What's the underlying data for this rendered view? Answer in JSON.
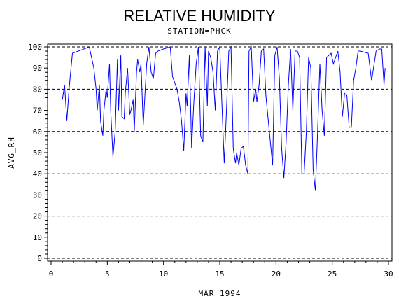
{
  "chart_data": {
    "type": "line",
    "title": "RELATIVE HUMIDITY",
    "subtitle": "STATION=PHCK",
    "xlabel": "MAR 1994",
    "ylabel": "AVG_RH",
    "xlim": [
      0,
      30
    ],
    "ylim": [
      0,
      100
    ],
    "x_ticks": [
      0,
      5,
      10,
      15,
      20,
      25,
      30
    ],
    "y_ticks": [
      0,
      10,
      20,
      30,
      40,
      50,
      60,
      70,
      80,
      90,
      100
    ],
    "reference_lines": [
      0,
      20,
      40,
      60,
      80,
      100
    ],
    "grid": "dashed horizontal reference lines",
    "line_color": "#0000ff",
    "series": [
      {
        "x": [
          1.0,
          1.2,
          1.4,
          1.6,
          1.9,
          3.4,
          3.8,
          4.0,
          4.1,
          4.3,
          4.4,
          4.6,
          4.7,
          4.9,
          5.0,
          5.2,
          5.3,
          5.5,
          5.7,
          5.9,
          6.0,
          6.2,
          6.3,
          6.5,
          6.6,
          6.8,
          7.0,
          7.1,
          7.3,
          7.4,
          7.6,
          7.7,
          7.9,
          8.0,
          8.2,
          8.5,
          8.7,
          8.9,
          9.1,
          9.3,
          9.5,
          10.0,
          10.6,
          10.8,
          11.2,
          11.4,
          11.6,
          11.8,
          12.0,
          12.1,
          12.3,
          12.5,
          12.7,
          12.9,
          13.1,
          13.3,
          13.5,
          13.7,
          13.9,
          14.0,
          14.2,
          14.4,
          14.6,
          14.8,
          15.0,
          15.2,
          15.4,
          15.6,
          15.8,
          16.0,
          16.2,
          16.4,
          16.5,
          16.7,
          16.9,
          17.1,
          17.3,
          17.5,
          17.6,
          17.8,
          18.0,
          18.2,
          18.3,
          18.5,
          18.7,
          18.9,
          19.1,
          19.3,
          19.5,
          19.7,
          19.9,
          20.1,
          20.3,
          20.5,
          20.7,
          20.9,
          21.1,
          21.3,
          21.5,
          21.7,
          21.9,
          22.1,
          22.3,
          22.5,
          22.7,
          22.9,
          23.1,
          23.3,
          23.5,
          23.7,
          23.9,
          24.1,
          24.3,
          24.5,
          24.7,
          24.9,
          25.1,
          25.3,
          25.5,
          25.7,
          25.9,
          26.1,
          26.3,
          26.5,
          26.7,
          26.9,
          27.1,
          27.3,
          27.5,
          28.2,
          28.5,
          28.9,
          29.2,
          29.4,
          29.6,
          29.7
        ],
        "y": [
          75,
          82,
          65,
          80,
          97,
          100,
          90,
          80,
          70,
          82,
          65,
          58,
          70,
          80,
          76,
          92,
          70,
          48,
          60,
          94,
          70,
          96,
          67,
          66,
          78,
          90,
          68,
          70,
          75,
          60,
          88,
          94,
          88,
          92,
          63,
          92,
          100,
          88,
          85,
          97,
          98,
          99,
          100,
          86,
          80,
          74,
          65,
          51,
          78,
          72,
          96,
          52,
          74,
          92,
          100,
          58,
          55,
          100,
          72,
          98,
          95,
          88,
          70,
          98,
          100,
          72,
          45,
          70,
          98,
          100,
          52,
          45,
          50,
          44,
          52,
          53,
          44,
          40,
          98,
          100,
          74,
          80,
          74,
          82,
          98,
          99,
          77,
          66,
          55,
          44,
          96,
          100,
          85,
          52,
          38,
          55,
          82,
          99,
          70,
          98,
          98,
          95,
          40,
          40,
          60,
          95,
          90,
          42,
          32,
          60,
          92,
          70,
          58,
          95,
          96,
          97,
          92,
          95,
          98,
          88,
          67,
          78,
          77,
          62,
          62,
          84,
          90,
          98,
          98,
          97,
          84,
          98,
          99,
          99,
          82,
          90
        ]
      }
    ]
  }
}
